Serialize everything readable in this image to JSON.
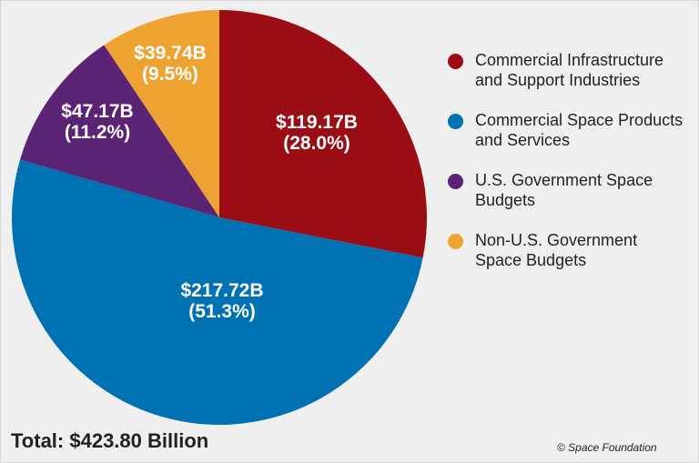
{
  "chart_data": {
    "type": "pie",
    "title": "",
    "slices": [
      {
        "label": "Commercial Infrastructure and Support Industries",
        "value": 119.17,
        "percent": 28.0,
        "value_label": "$119.17B",
        "percent_label": "(28.0%)",
        "color": "#9b0d14"
      },
      {
        "label": "Commercial Space Products and Services",
        "value": 217.72,
        "percent": 51.3,
        "value_label": "$217.72B",
        "percent_label": "(51.3%)",
        "color": "#0071b2"
      },
      {
        "label": "U.S. Government Space Budgets",
        "value": 47.17,
        "percent": 11.2,
        "value_label": "$47.17B",
        "percent_label": "(11.2%)",
        "color": "#5b2373"
      },
      {
        "label": "Non-U.S. Government Space Budgets",
        "value": 39.74,
        "percent": 9.5,
        "value_label": "$39.74B",
        "percent_label": "(9.5%)",
        "color": "#eda232"
      }
    ],
    "legend_position": "right",
    "start": "12 o'clock",
    "direction": "clockwise"
  },
  "legend": [
    {
      "lines": [
        "Commercial Infrastructure",
        "and Support Industries"
      ],
      "color": "#9b0d14"
    },
    {
      "lines": [
        "Commercial Space Products",
        "and Services"
      ],
      "color": "#0071b2"
    },
    {
      "lines": [
        "U.S. Government Space",
        "Budgets"
      ],
      "color": "#5b2373"
    },
    {
      "lines": [
        "Non-U.S. Government",
        "Space Budgets"
      ],
      "color": "#eda232"
    }
  ],
  "footer": {
    "total": "Total: $423.80 Billion",
    "credit": "© Space Foundation"
  }
}
